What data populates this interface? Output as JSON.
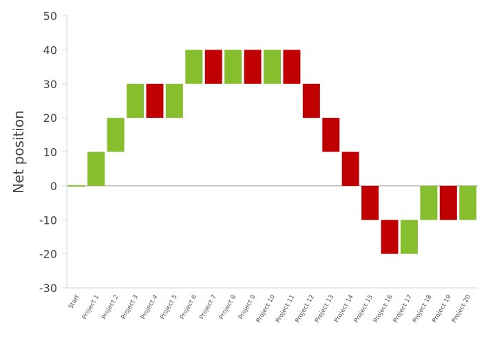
{
  "chart_data": {
    "type": "bar",
    "subtype": "waterfall",
    "ylabel": "Net position",
    "xlabel": "",
    "ylim": [
      -30,
      50
    ],
    "yticks": [
      "50",
      "40",
      "30",
      "20",
      "10",
      "0",
      "-10",
      "-20",
      "-30"
    ],
    "categories": [
      "Start",
      "Project 1",
      "Project 2",
      "Project 3",
      "Project 4",
      "Project 5",
      "Project 6",
      "Project 7",
      "Project 8",
      "Project 9",
      "Project 10",
      "Project 11",
      "Project 12",
      "Project 13",
      "Project 14",
      "Project 15",
      "Project 16",
      "Project 17",
      "Project 18",
      "Project 19",
      "Project 20"
    ],
    "bars": [
      {
        "from": 0,
        "to": 0,
        "color": "positive"
      },
      {
        "from": 0,
        "to": 10,
        "color": "positive"
      },
      {
        "from": 10,
        "to": 20,
        "color": "positive"
      },
      {
        "from": 20,
        "to": 30,
        "color": "positive"
      },
      {
        "from": 30,
        "to": 20,
        "color": "negative"
      },
      {
        "from": 20,
        "to": 30,
        "color": "positive"
      },
      {
        "from": 30,
        "to": 40,
        "color": "positive"
      },
      {
        "from": 40,
        "to": 30,
        "color": "negative"
      },
      {
        "from": 30,
        "to": 40,
        "color": "positive"
      },
      {
        "from": 40,
        "to": 30,
        "color": "negative"
      },
      {
        "from": 30,
        "to": 40,
        "color": "positive"
      },
      {
        "from": 40,
        "to": 30,
        "color": "negative"
      },
      {
        "from": 30,
        "to": 20,
        "color": "negative"
      },
      {
        "from": 20,
        "to": 10,
        "color": "negative"
      },
      {
        "from": 10,
        "to": 0,
        "color": "negative"
      },
      {
        "from": 0,
        "to": -10,
        "color": "negative"
      },
      {
        "from": -10,
        "to": -20,
        "color": "negative"
      },
      {
        "from": -20,
        "to": -10,
        "color": "positive"
      },
      {
        "from": -10,
        "to": 0,
        "color": "positive"
      },
      {
        "from": 0,
        "to": -10,
        "color": "negative"
      },
      {
        "from": -10,
        "to": 0,
        "color": "positive"
      }
    ],
    "colors": {
      "positive": "#86be2e",
      "negative": "#c00000"
    },
    "grid": false
  }
}
